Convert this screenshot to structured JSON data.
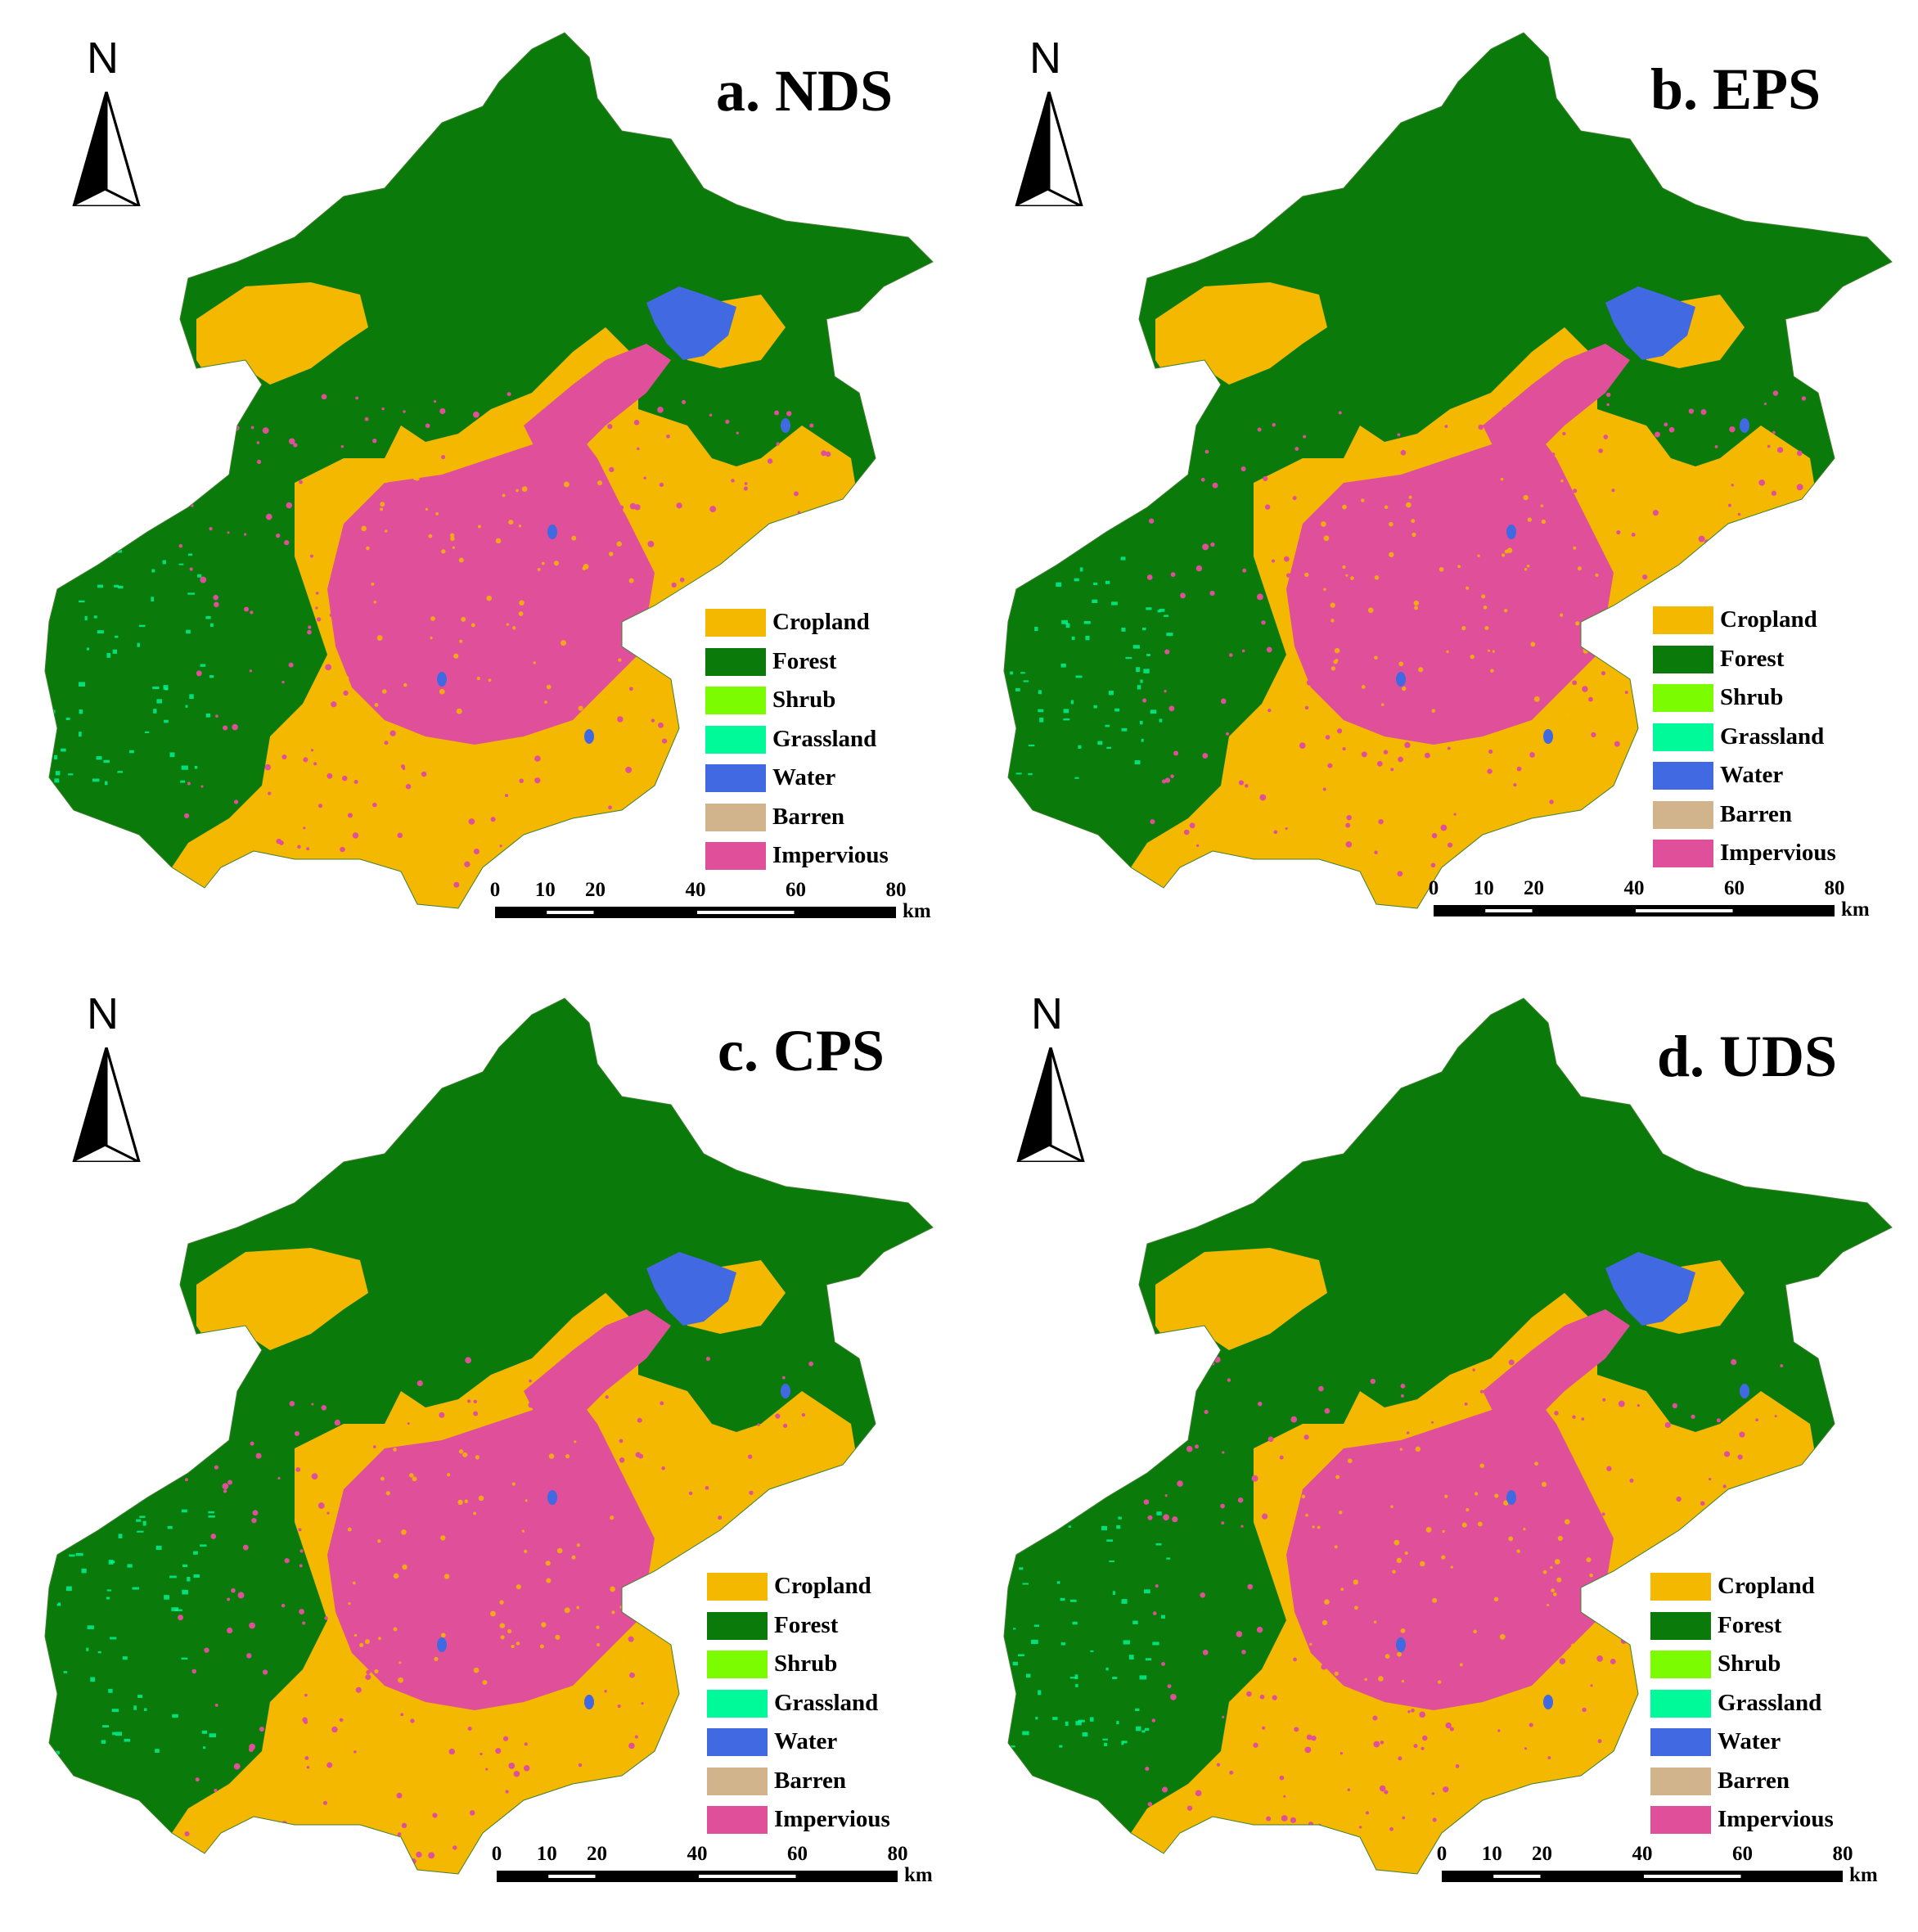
{
  "colors": {
    "cropland": "#f5b800",
    "forest": "#0a7a0a",
    "shrub": "#7cfc00",
    "grassland": "#00fa9a",
    "water": "#4169e1",
    "barren": "#d2b48c",
    "impervious": "#e0509a"
  },
  "north_arrow": {
    "letter": "N",
    "icon": "north-arrow-icon"
  },
  "legend": [
    {
      "label": "Cropland",
      "color": "#f5b800"
    },
    {
      "label": "Forest",
      "color": "#0a7a0a"
    },
    {
      "label": "Shrub",
      "color": "#7cfc00"
    },
    {
      "label": "Grassland",
      "color": "#00fa9a"
    },
    {
      "label": "Water",
      "color": "#4169e1"
    },
    {
      "label": "Barren",
      "color": "#d2b48c"
    },
    {
      "label": "Impervious",
      "color": "#e0509a"
    }
  ],
  "scale_bar": {
    "ticks": [
      "0",
      "10",
      "20",
      "40",
      "60",
      "80"
    ],
    "unit": "km"
  },
  "panels": [
    {
      "title": "a. NDS"
    },
    {
      "title": "b. EPS"
    },
    {
      "title": "c. CPS"
    },
    {
      "title": "d. UDS"
    }
  ]
}
